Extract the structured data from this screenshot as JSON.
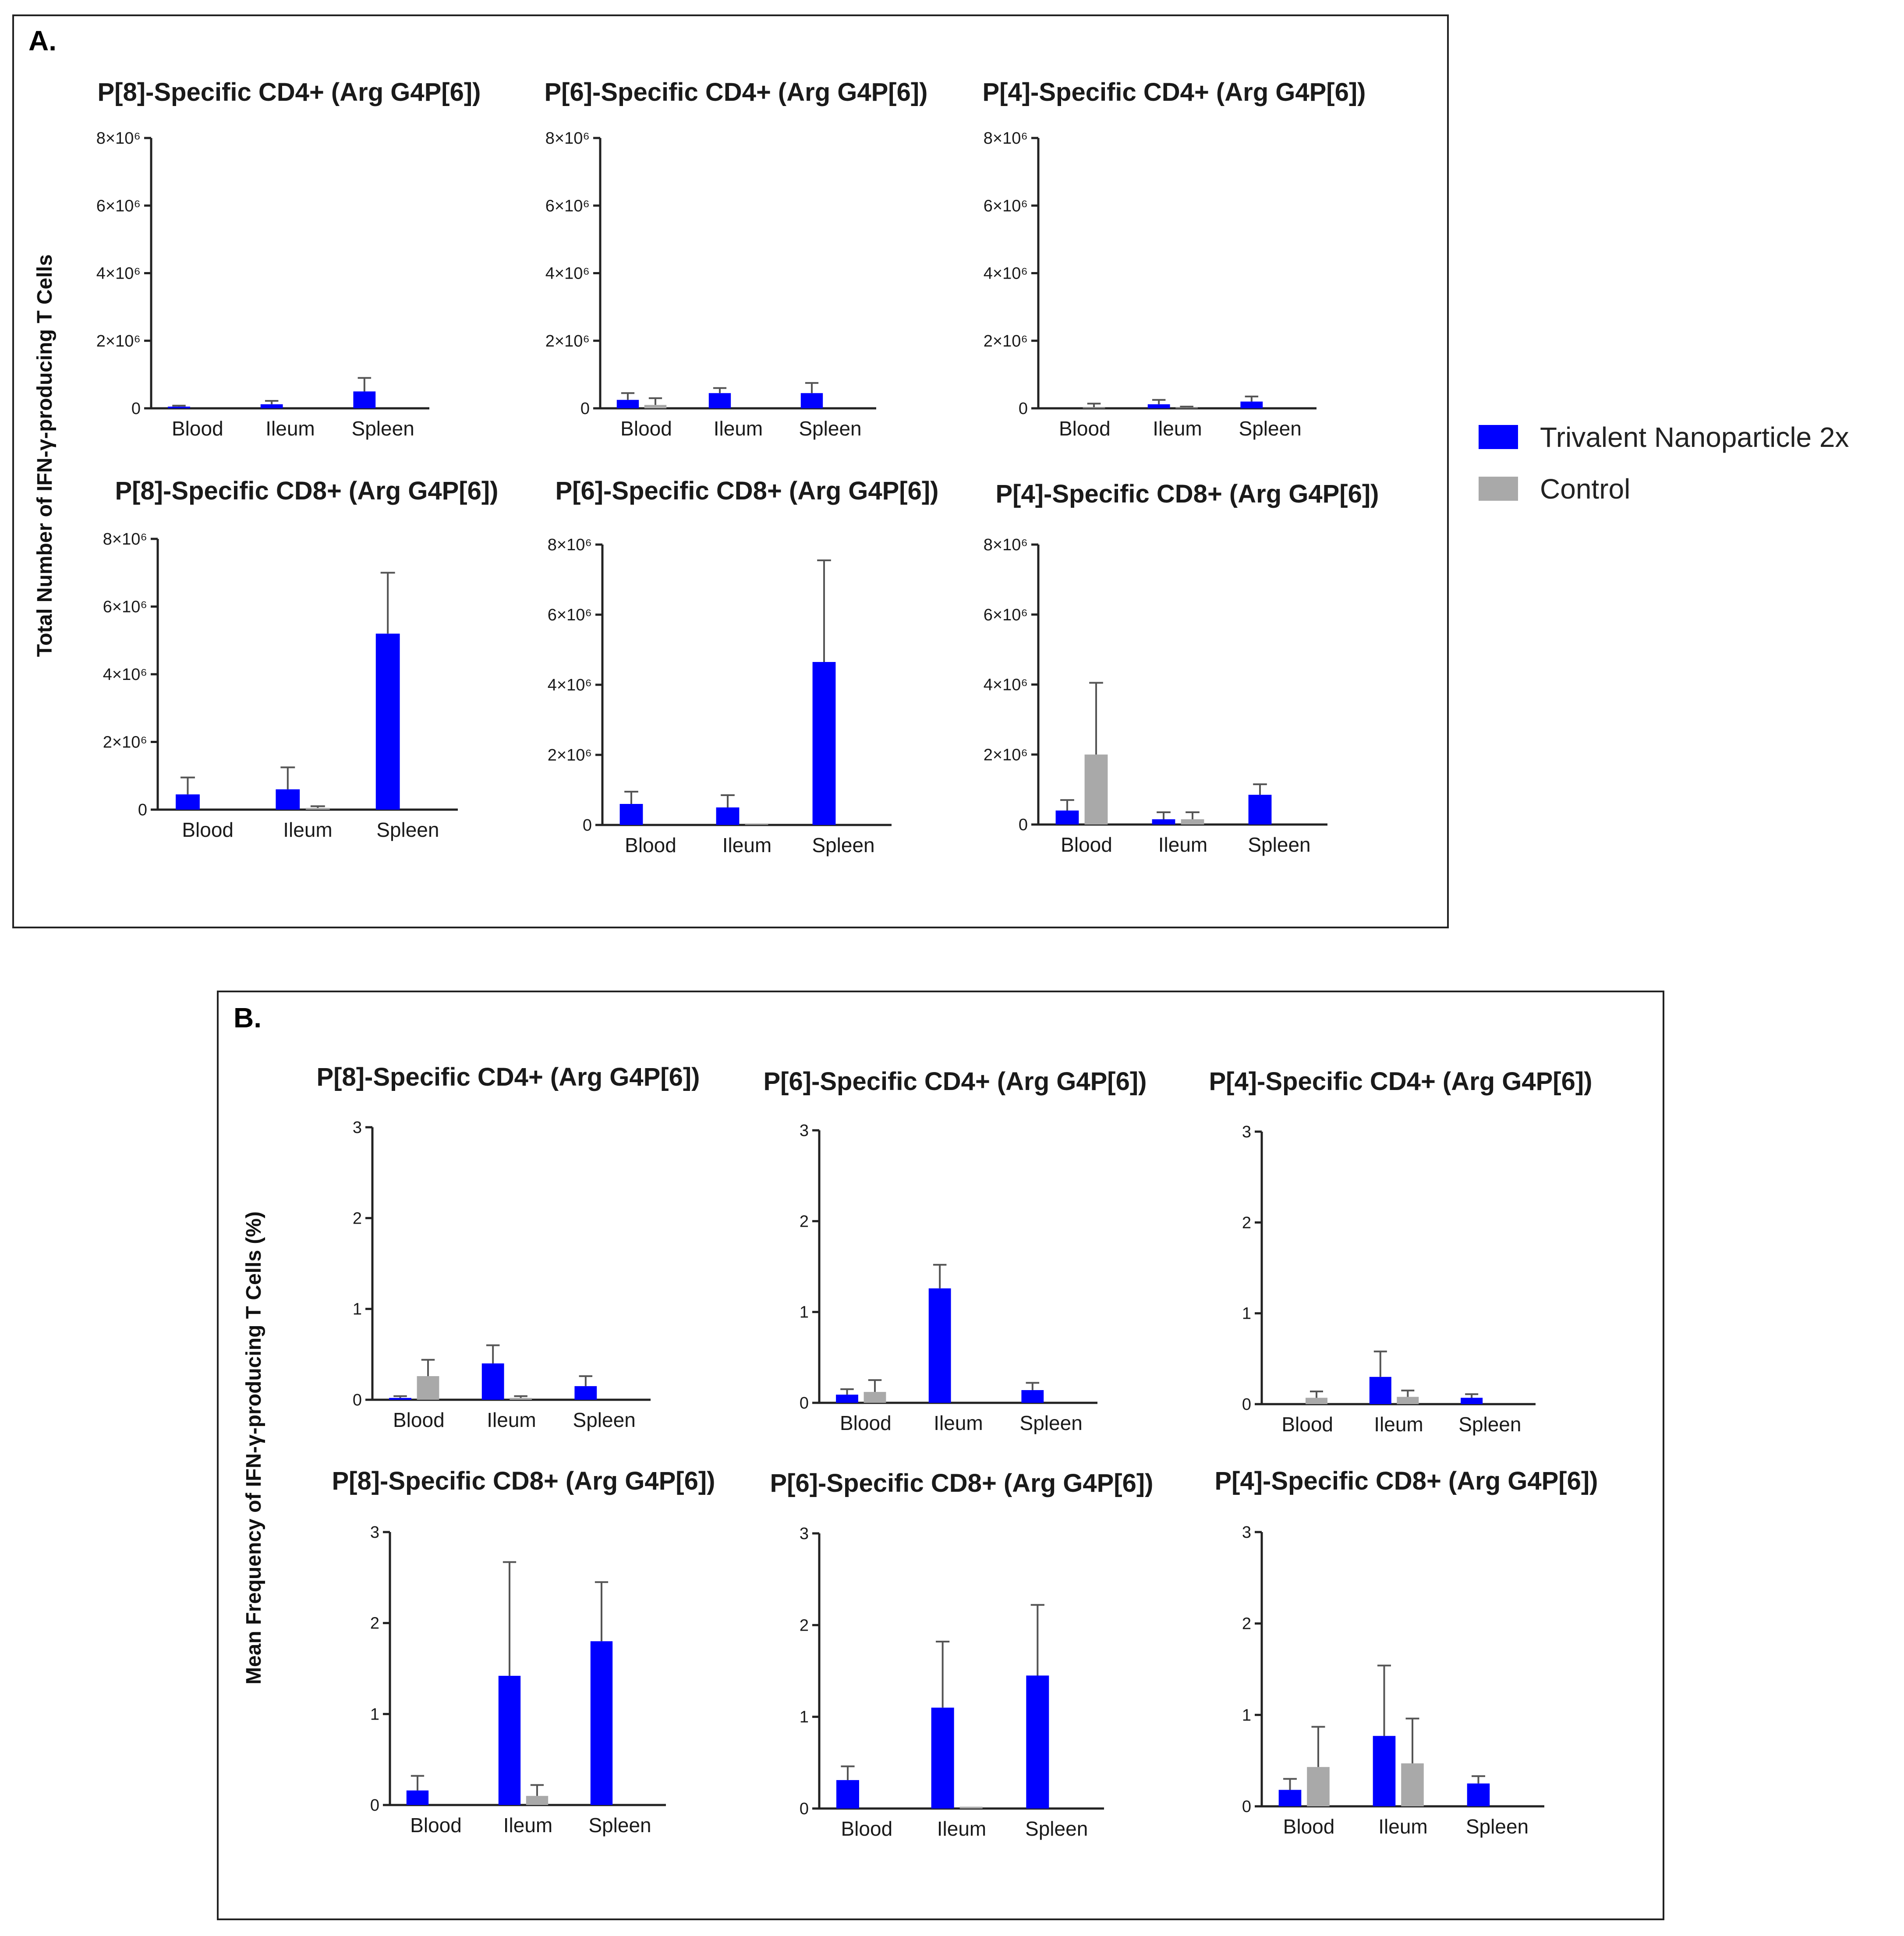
{
  "colors": {
    "trivalent": "#0000ff",
    "control": "#a9a9a9"
  },
  "legend": [
    {
      "name": "Trivalent Nanoparticle 2x",
      "color": "#0000ff"
    },
    {
      "name": "Control",
      "color": "#a9a9a9"
    }
  ],
  "panels": [
    {
      "letter": "A.",
      "ylabel": "Total Number of IFN-γ-producing T Cells"
    },
    {
      "letter": "B.",
      "ylabel": "Mean Frequency of IFN-γ-producing T Cells (%)"
    }
  ],
  "chart_data": [
    {
      "type": "bar",
      "panel": "A",
      "title": "P[8]-Specific CD4+ (Arg G4P[6])",
      "categories": [
        "Blood",
        "Ileum",
        "Spleen"
      ],
      "ylim": [
        0,
        8000000
      ],
      "yticks": [
        "0",
        "2×10⁶",
        "4×10⁶",
        "6×10⁶",
        "8×10⁶"
      ],
      "series": [
        {
          "name": "Trivalent Nanoparticle 2x",
          "values": [
            50000,
            120000,
            500000
          ],
          "errors": [
            30000,
            100000,
            400000
          ]
        },
        {
          "name": "Control",
          "values": [
            0,
            0,
            0
          ],
          "errors": [
            0,
            0,
            0
          ]
        }
      ]
    },
    {
      "type": "bar",
      "panel": "A",
      "title": "P[6]-Specific CD4+ (Arg G4P[6])",
      "categories": [
        "Blood",
        "Ileum",
        "Spleen"
      ],
      "ylim": [
        0,
        8000000
      ],
      "yticks": [
        "0",
        "2×10⁶",
        "4×10⁶",
        "6×10⁶",
        "8×10⁶"
      ],
      "series": [
        {
          "name": "Trivalent Nanoparticle 2x",
          "values": [
            250000,
            450000,
            450000
          ],
          "errors": [
            200000,
            150000,
            300000
          ]
        },
        {
          "name": "Control",
          "values": [
            100000,
            0,
            0
          ],
          "errors": [
            200000,
            0,
            0
          ]
        }
      ]
    },
    {
      "type": "bar",
      "panel": "A",
      "title": "P[4]-Specific CD4+ (Arg G4P[6])",
      "categories": [
        "Blood",
        "Ileum",
        "Spleen"
      ],
      "ylim": [
        0,
        8000000
      ],
      "yticks": [
        "0",
        "2×10⁶",
        "4×10⁶",
        "6×10⁶",
        "8×10⁶"
      ],
      "series": [
        {
          "name": "Trivalent Nanoparticle 2x",
          "values": [
            0,
            120000,
            200000
          ],
          "errors": [
            0,
            130000,
            150000
          ]
        },
        {
          "name": "Control",
          "values": [
            20000,
            20000,
            0
          ],
          "errors": [
            120000,
            30000,
            0
          ]
        }
      ]
    },
    {
      "type": "bar",
      "panel": "A",
      "title": "P[8]-Specific CD8+ (Arg G4P[6])",
      "categories": [
        "Blood",
        "Ileum",
        "Spleen"
      ],
      "ylim": [
        0,
        8000000
      ],
      "yticks": [
        "0",
        "2×10⁶",
        "4×10⁶",
        "6×10⁶",
        "8×10⁶"
      ],
      "series": [
        {
          "name": "Trivalent Nanoparticle 2x",
          "values": [
            450000,
            600000,
            5200000
          ],
          "errors": [
            500000,
            650000,
            1800000
          ]
        },
        {
          "name": "Control",
          "values": [
            0,
            50000,
            0
          ],
          "errors": [
            0,
            50000,
            0
          ]
        }
      ]
    },
    {
      "type": "bar",
      "panel": "A",
      "title": "P[6]-Specific CD8+ (Arg G4P[6])",
      "categories": [
        "Blood",
        "Ileum",
        "Spleen"
      ],
      "ylim": [
        0,
        8000000
      ],
      "yticks": [
        "0",
        "2×10⁶",
        "4×10⁶",
        "6×10⁶",
        "8×10⁶"
      ],
      "series": [
        {
          "name": "Trivalent Nanoparticle 2x",
          "values": [
            600000,
            500000,
            4650000
          ],
          "errors": [
            350000,
            350000,
            2900000
          ]
        },
        {
          "name": "Control",
          "values": [
            0,
            20000,
            0
          ],
          "errors": [
            0,
            0,
            0
          ]
        }
      ]
    },
    {
      "type": "bar",
      "panel": "A",
      "title": "P[4]-Specific CD8+ (Arg G4P[6])",
      "categories": [
        "Blood",
        "Ileum",
        "Spleen"
      ],
      "ylim": [
        0,
        8000000
      ],
      "yticks": [
        "0",
        "2×10⁶",
        "4×10⁶",
        "6×10⁶",
        "8×10⁶"
      ],
      "series": [
        {
          "name": "Trivalent Nanoparticle 2x",
          "values": [
            400000,
            150000,
            850000
          ],
          "errors": [
            300000,
            200000,
            300000
          ]
        },
        {
          "name": "Control",
          "values": [
            2000000,
            150000,
            0
          ],
          "errors": [
            2050000,
            200000,
            0
          ]
        }
      ]
    },
    {
      "type": "bar",
      "panel": "B",
      "title": "P[8]-Specific CD4+ (Arg G4P[6])",
      "categories": [
        "Blood",
        "Ileum",
        "Spleen"
      ],
      "ylim": [
        0,
        3
      ],
      "yticks": [
        "0",
        "1",
        "2",
        "3"
      ],
      "series": [
        {
          "name": "Trivalent Nanoparticle 2x",
          "values": [
            0.02,
            0.4,
            0.15
          ],
          "errors": [
            0.02,
            0.2,
            0.11
          ]
        },
        {
          "name": "Control",
          "values": [
            0.26,
            0.02,
            0
          ],
          "errors": [
            0.18,
            0.02,
            0
          ]
        }
      ]
    },
    {
      "type": "bar",
      "panel": "B",
      "title": "P[6]-Specific CD4+ (Arg G4P[6])",
      "categories": [
        "Blood",
        "Ileum",
        "Spleen"
      ],
      "ylim": [
        0,
        3
      ],
      "yticks": [
        "0",
        "1",
        "2",
        "3"
      ],
      "series": [
        {
          "name": "Trivalent Nanoparticle 2x",
          "values": [
            0.09,
            1.26,
            0.14
          ],
          "errors": [
            0.06,
            0.26,
            0.08
          ]
        },
        {
          "name": "Control",
          "values": [
            0.12,
            0,
            0
          ],
          "errors": [
            0.13,
            0,
            0
          ]
        }
      ]
    },
    {
      "type": "bar",
      "panel": "B",
      "title": "P[4]-Specific CD4+ (Arg G4P[6])",
      "categories": [
        "Blood",
        "Ileum",
        "Spleen"
      ],
      "ylim": [
        0,
        3
      ],
      "yticks": [
        "0",
        "1",
        "2",
        "3"
      ],
      "series": [
        {
          "name": "Trivalent Nanoparticle 2x",
          "values": [
            0,
            0.3,
            0.07
          ],
          "errors": [
            0,
            0.28,
            0.04
          ]
        },
        {
          "name": "Control",
          "values": [
            0.07,
            0.08,
            0
          ],
          "errors": [
            0.07,
            0.07,
            0
          ]
        }
      ]
    },
    {
      "type": "bar",
      "panel": "B",
      "title": "P[8]-Specific CD8+ (Arg G4P[6])",
      "categories": [
        "Blood",
        "Ileum",
        "Spleen"
      ],
      "ylim": [
        0,
        3
      ],
      "yticks": [
        "0",
        "1",
        "2",
        "3"
      ],
      "series": [
        {
          "name": "Trivalent Nanoparticle 2x",
          "values": [
            0.16,
            1.42,
            1.8
          ],
          "errors": [
            0.16,
            1.25,
            0.65
          ]
        },
        {
          "name": "Control",
          "values": [
            0,
            0.1,
            0
          ],
          "errors": [
            0,
            0.12,
            0
          ]
        }
      ]
    },
    {
      "type": "bar",
      "panel": "B",
      "title": "P[6]-Specific CD8+ (Arg G4P[6])",
      "categories": [
        "Blood",
        "Ileum",
        "Spleen"
      ],
      "ylim": [
        0,
        3
      ],
      "yticks": [
        "0",
        "1",
        "2",
        "3"
      ],
      "series": [
        {
          "name": "Trivalent Nanoparticle 2x",
          "values": [
            0.31,
            1.1,
            1.45
          ],
          "errors": [
            0.15,
            0.72,
            0.77
          ]
        },
        {
          "name": "Control",
          "values": [
            0,
            0.02,
            0
          ],
          "errors": [
            0,
            0,
            0
          ]
        }
      ]
    },
    {
      "type": "bar",
      "panel": "B",
      "title": "P[4]-Specific CD8+ (Arg G4P[6])",
      "categories": [
        "Blood",
        "Ileum",
        "Spleen"
      ],
      "ylim": [
        0,
        3
      ],
      "yticks": [
        "0",
        "1",
        "2",
        "3"
      ],
      "series": [
        {
          "name": "Trivalent Nanoparticle 2x",
          "values": [
            0.18,
            0.77,
            0.25
          ],
          "errors": [
            0.12,
            0.77,
            0.08
          ]
        },
        {
          "name": "Control",
          "values": [
            0.43,
            0.47,
            0
          ],
          "errors": [
            0.44,
            0.49,
            0
          ]
        }
      ]
    }
  ]
}
